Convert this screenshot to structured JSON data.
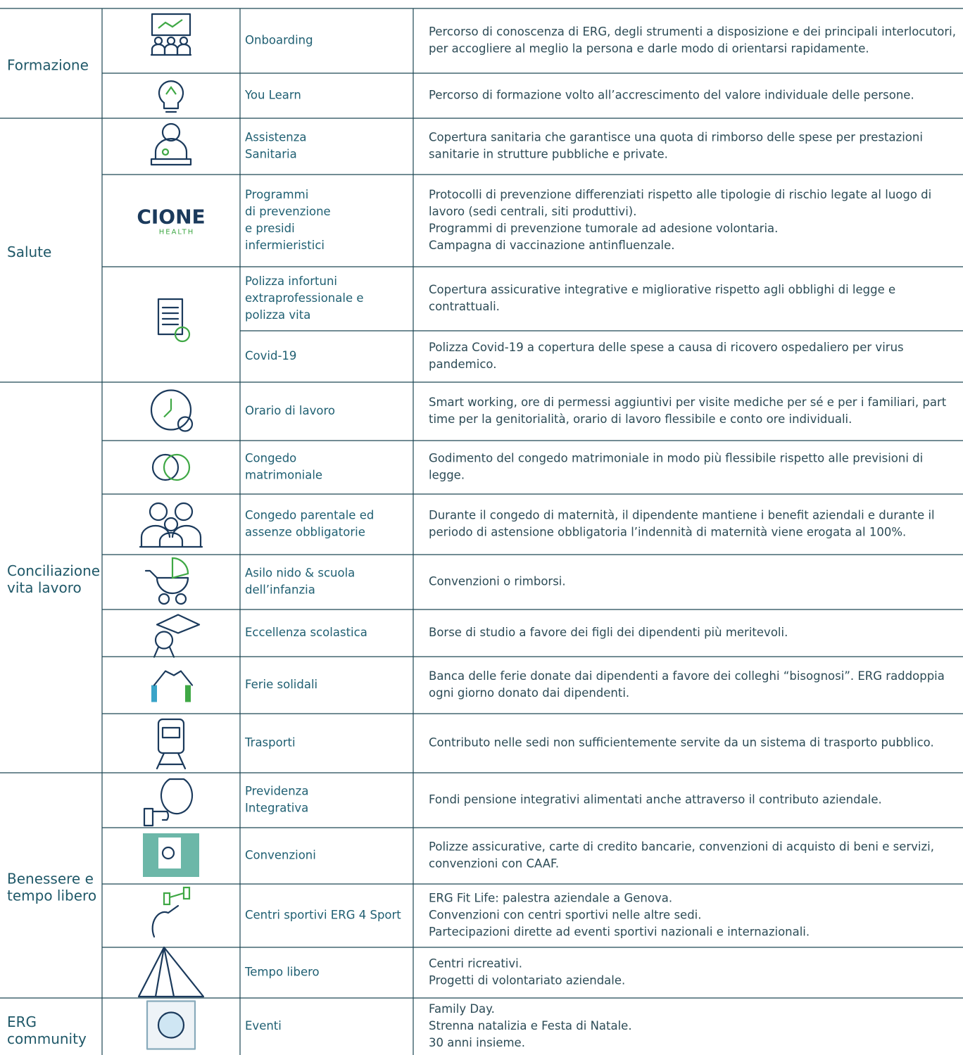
{
  "groups": [
    {
      "name": [
        "Formazione"
      ],
      "rows": [
        {
          "title": [
            "Onboarding"
          ],
          "description": [
            "Percorso di conoscenza di ERG, degli strumenti a disposizione e dei principali interlocutori,",
            "per accogliere al meglio la persona e darle modo di orientarsi rapidamente."
          ]
        },
        {
          "title": [
            "You Learn"
          ],
          "description": [
            "Percorso di formazione volto all’accrescimento del valore individuale delle persone."
          ]
        }
      ]
    },
    {
      "name": [
        "Salute"
      ],
      "rows": [
        {
          "title": [
            "Assistenza",
            "Sanitaria"
          ],
          "description": [
            "Copertura sanitaria che garantisce una quota di rimborso delle spese per prestazioni",
            "sanitarie in strutture pubbliche e private."
          ]
        },
        {
          "title": [
            "Programmi",
            "di prevenzione",
            "e presidi",
            "infermieristici"
          ],
          "logo": [
            "CIONE",
            "HEALTH"
          ],
          "description": [
            "Protocolli di prevenzione differenziati rispetto alle tipologie di rischio legate al luogo di",
            "lavoro (sedi centrali, siti produttivi).",
            "Programmi di prevenzione tumorale ad adesione volontaria.",
            "Campagna di vaccinazione antinfluenzale."
          ]
        },
        {
          "title": [
            "Polizza infortuni",
            "extraprofessionale e",
            "polizza vita"
          ],
          "description": [
            "Copertura assicurative integrative e migliorative rispetto agli obblighi di legge e",
            "contrattuali."
          ]
        },
        {
          "title": [
            "Covid-19"
          ],
          "description": [
            "Polizza Covid-19 a copertura delle spese a causa di ricovero ospedaliero per virus",
            "pandemico."
          ]
        }
      ]
    },
    {
      "name": [
        "Conciliazione",
        "vita lavoro"
      ],
      "rows": [
        {
          "title": [
            "Orario di lavoro"
          ],
          "description": [
            "Smart working, ore di permessi aggiuntivi per visite mediche per sé e per i familiari, part",
            "time per la genitorialità, orario di lavoro flessibile e conto ore individuali."
          ]
        },
        {
          "title": [
            "Congedo",
            "matrimoniale"
          ],
          "description": [
            "Godimento del congedo matrimoniale in modo più flessibile rispetto alle previsioni di",
            "legge."
          ]
        },
        {
          "title": [
            "Congedo parentale ed",
            "assenze obbligatorie"
          ],
          "description": [
            "Durante il congedo di maternità, il dipendente mantiene i benefit aziendali e durante il",
            "periodo di astensione obbligatoria l’indennità di maternità viene erogata al 100%."
          ]
        },
        {
          "title": [
            "Asilo nido & scuola",
            "dell’infanzia"
          ],
          "description": [
            "Convenzioni o rimborsi."
          ]
        },
        {
          "title": [
            "Eccellenza scolastica"
          ],
          "description": [
            "Borse di studio a favore dei figli dei dipendenti più meritevoli."
          ]
        },
        {
          "title": [
            "Ferie solidali"
          ],
          "description": [
            "Banca delle ferie donate dai dipendenti a favore dei colleghi “bisognosi”. ERG raddoppia",
            "ogni giorno donato dai dipendenti."
          ]
        },
        {
          "title": [
            "Trasporti"
          ],
          "description": [
            "Contributo nelle sedi non sufficientemente servite da un sistema di trasporto pubblico."
          ]
        }
      ]
    },
    {
      "name": [
        "Benessere e",
        "tempo libero"
      ],
      "rows": [
        {
          "title": [
            "Previdenza",
            "Integrativa"
          ],
          "description": [
            "Fondi pensione integrativi alimentati anche attraverso il contributo aziendale."
          ]
        },
        {
          "title": [
            "Convenzioni"
          ],
          "description": [
            "Polizze assicurative, carte di credito bancarie, convenzioni di acquisto di beni e servizi,",
            "convenzioni con CAAF."
          ]
        },
        {
          "title": [
            "Centri sportivi ERG 4 Sport"
          ],
          "description": [
            "ERG Fit Life: palestra aziendale a Genova.",
            "Convenzioni con centri sportivi nelle altre sedi.",
            "Partecipazioni dirette ad eventi sportivi nazionali e internazionali."
          ]
        },
        {
          "title": [
            "Tempo libero"
          ],
          "description": [
            "Centri ricreativi.",
            "Progetti di volontariato aziendale."
          ]
        }
      ]
    },
    {
      "name": [
        "ERG",
        "community"
      ],
      "rows": [
        {
          "title": [
            "Eventi"
          ],
          "description": [
            "Family Day.",
            "Strenna natalizia e Festa di Natale.",
            "30 anni insieme."
          ]
        }
      ]
    }
  ]
}
